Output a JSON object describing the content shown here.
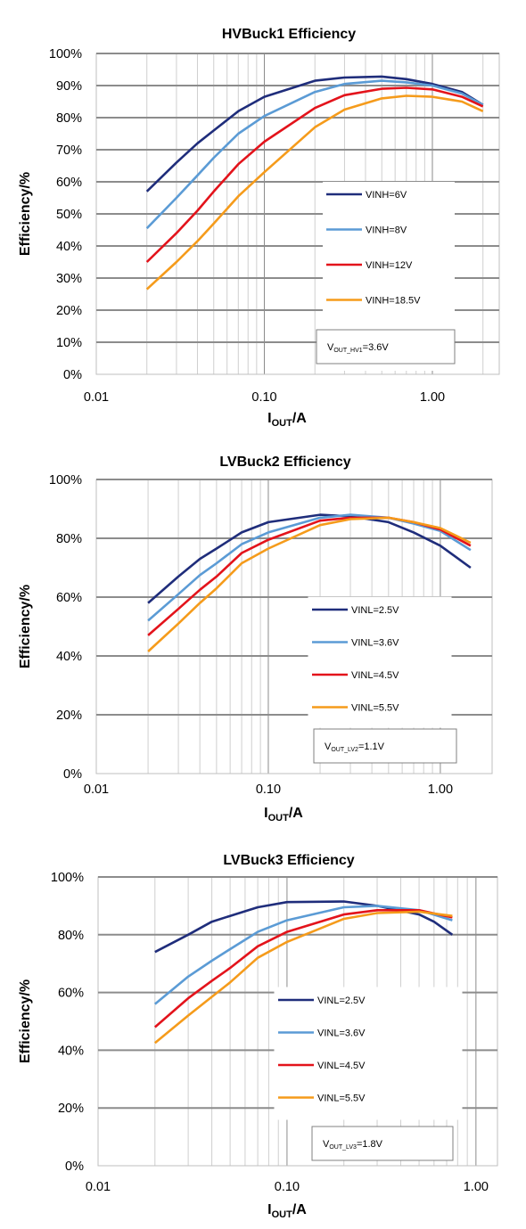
{
  "chart_data": [
    {
      "type": "line",
      "title": "HVBuck1 Efficiency",
      "xlabel_main": "I",
      "xlabel_sub": "OUT",
      "xlabel_tail": "/A",
      "ylabel": "Efficiency/%",
      "xscale": "log",
      "xlim": [
        0.01,
        2.5
      ],
      "ylim": [
        0,
        100
      ],
      "yticks": [
        0,
        10,
        20,
        30,
        40,
        50,
        60,
        70,
        80,
        90,
        100
      ],
      "ytick_labels": [
        "0%",
        "10%",
        "20%",
        "30%",
        "40%",
        "50%",
        "60%",
        "70%",
        "80%",
        "90%",
        "100%"
      ],
      "xticks": [
        0.01,
        0.1,
        1.0
      ],
      "xtick_labels": [
        "0.01",
        "0.10",
        "1.00"
      ],
      "grid": true,
      "legend_position": "center-right",
      "note": {
        "main": "V",
        "sub": "OUT_HV1",
        "tail": "=3.6V"
      },
      "series": [
        {
          "name": "VINH=6V",
          "color": "#1F2D7B",
          "x": [
            0.02,
            0.03,
            0.04,
            0.05,
            0.07,
            0.1,
            0.2,
            0.3,
            0.5,
            0.7,
            1.0,
            1.5,
            2.0
          ],
          "y": [
            57,
            66,
            72,
            76,
            82,
            86.5,
            91.5,
            92.5,
            92.8,
            92,
            90.5,
            88,
            84
          ]
        },
        {
          "name": "VINH=8V",
          "color": "#5B9BD5",
          "x": [
            0.02,
            0.03,
            0.04,
            0.05,
            0.07,
            0.1,
            0.2,
            0.3,
            0.5,
            0.7,
            1.0,
            1.5,
            2.0
          ],
          "y": [
            45.5,
            55,
            62,
            67.5,
            75,
            80.5,
            88,
            90.5,
            91.5,
            91,
            90,
            87.5,
            84
          ]
        },
        {
          "name": "VINH=12V",
          "color": "#E3131B",
          "x": [
            0.02,
            0.03,
            0.04,
            0.05,
            0.07,
            0.1,
            0.2,
            0.3,
            0.5,
            0.7,
            1.0,
            1.5,
            2.0
          ],
          "y": [
            35,
            44,
            51,
            57,
            65.5,
            72.5,
            83,
            87,
            89,
            89.3,
            88.8,
            86.5,
            83.5
          ]
        },
        {
          "name": "VINH=18.5V",
          "color": "#F59B1B",
          "x": [
            0.02,
            0.03,
            0.04,
            0.05,
            0.07,
            0.1,
            0.2,
            0.3,
            0.5,
            0.7,
            1.0,
            1.5,
            2.0
          ],
          "y": [
            26.5,
            35,
            41.5,
            47,
            55.5,
            63,
            77,
            82.5,
            86,
            86.8,
            86.5,
            85,
            82
          ]
        }
      ]
    },
    {
      "type": "line",
      "title": "LVBuck2 Efficiency",
      "xlabel_main": "I",
      "xlabel_sub": "OUT",
      "xlabel_tail": "/A",
      "ylabel": "Efficiency/%",
      "xscale": "log",
      "xlim": [
        0.01,
        2.0
      ],
      "ylim": [
        0,
        100
      ],
      "yticks": [
        0,
        20,
        40,
        60,
        80,
        100
      ],
      "ytick_labels": [
        "0%",
        "20%",
        "40%",
        "60%",
        "80%",
        "100%"
      ],
      "xticks": [
        0.01,
        0.1,
        1.0
      ],
      "xtick_labels": [
        "0.01",
        "0.10",
        "1.00"
      ],
      "grid": true,
      "legend_position": "center-right",
      "note": {
        "main": "V",
        "sub": "OUT_LV2",
        "tail": "=1.1V"
      },
      "series": [
        {
          "name": "VINL=2.5V",
          "color": "#1F2D7B",
          "x": [
            0.02,
            0.03,
            0.04,
            0.05,
            0.07,
            0.1,
            0.2,
            0.3,
            0.5,
            0.7,
            1.0,
            1.5
          ],
          "y": [
            58,
            67,
            73,
            76.5,
            82,
            85.5,
            88,
            87.5,
            85.5,
            82,
            77.5,
            70
          ]
        },
        {
          "name": "VINL=3.6V",
          "color": "#5B9BD5",
          "x": [
            0.02,
            0.03,
            0.04,
            0.05,
            0.07,
            0.1,
            0.2,
            0.3,
            0.5,
            0.7,
            1.0,
            1.5
          ],
          "y": [
            52,
            61,
            67.5,
            71.5,
            78,
            82,
            87,
            88,
            87,
            85,
            82.5,
            76
          ]
        },
        {
          "name": "VINL=4.5V",
          "color": "#E3131B",
          "x": [
            0.02,
            0.03,
            0.04,
            0.05,
            0.07,
            0.1,
            0.2,
            0.3,
            0.5,
            0.7,
            1.0,
            1.5
          ],
          "y": [
            47,
            56,
            62.5,
            67,
            75,
            79.5,
            86,
            87,
            87,
            85.5,
            83,
            77.5
          ]
        },
        {
          "name": "VINL=5.5V",
          "color": "#F59B1B",
          "x": [
            0.02,
            0.03,
            0.04,
            0.05,
            0.07,
            0.1,
            0.2,
            0.3,
            0.5,
            0.7,
            1.0,
            1.5
          ],
          "y": [
            41.5,
            51,
            58,
            63,
            71.5,
            76.5,
            84.5,
            86.5,
            87,
            85.5,
            83.5,
            78.5
          ]
        }
      ]
    },
    {
      "type": "line",
      "title": "LVBuck3 Efficiency",
      "xlabel_main": "I",
      "xlabel_sub": "OUT",
      "xlabel_tail": "/A",
      "ylabel": "Efficiency/%",
      "xscale": "log",
      "xlim": [
        0.01,
        1.3
      ],
      "ylim": [
        0,
        100
      ],
      "yticks": [
        0,
        20,
        40,
        60,
        80,
        100
      ],
      "ytick_labels": [
        "0%",
        "20%",
        "40%",
        "60%",
        "80%",
        "100%"
      ],
      "xticks": [
        0.01,
        0.1,
        1.0
      ],
      "xtick_labels": [
        "0.01",
        "0.10",
        "1.00"
      ],
      "grid": true,
      "legend_position": "center-right",
      "note": {
        "main": "V",
        "sub": "OUT_LV3",
        "tail": "=1.8V"
      },
      "series": [
        {
          "name": "VINL=2.5V",
          "color": "#1F2D7B",
          "x": [
            0.02,
            0.03,
            0.04,
            0.05,
            0.07,
            0.1,
            0.2,
            0.3,
            0.5,
            0.6,
            0.75
          ],
          "y": [
            74,
            80,
            84.5,
            86.5,
            89.5,
            91.3,
            91.5,
            90,
            87,
            84.5,
            80
          ]
        },
        {
          "name": "VINL=3.6V",
          "color": "#5B9BD5",
          "x": [
            0.02,
            0.03,
            0.04,
            0.05,
            0.07,
            0.1,
            0.2,
            0.3,
            0.5,
            0.75
          ],
          "y": [
            56,
            65.5,
            71,
            75,
            81,
            85,
            89.5,
            90,
            88.5,
            85
          ]
        },
        {
          "name": "VINL=4.5V",
          "color": "#E3131B",
          "x": [
            0.02,
            0.03,
            0.04,
            0.05,
            0.07,
            0.1,
            0.2,
            0.3,
            0.5,
            0.75
          ],
          "y": [
            48,
            58,
            64,
            68.5,
            76,
            81,
            87,
            88.5,
            88.5,
            86
          ]
        },
        {
          "name": "VINL=5.5V",
          "color": "#F59B1B",
          "x": [
            0.02,
            0.03,
            0.04,
            0.05,
            0.07,
            0.1,
            0.2,
            0.3,
            0.5,
            0.75
          ],
          "y": [
            42.5,
            52,
            58.5,
            63.5,
            72,
            77.5,
            85.5,
            87.5,
            88,
            86.5
          ]
        }
      ]
    }
  ]
}
